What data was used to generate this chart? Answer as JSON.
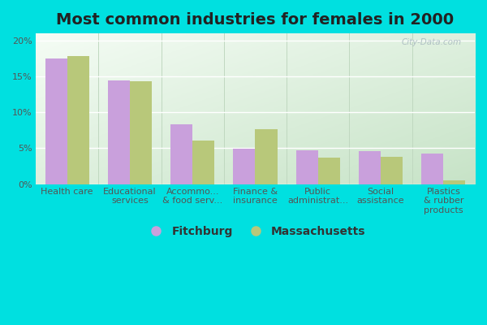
{
  "title": "Most common industries for females in 2000",
  "categories": [
    "Health care",
    "Educational\nservices",
    "Accommo...\n& food serv...",
    "Finance &\ninsurance",
    "Public\nadministrat...",
    "Social\nassistance",
    "Plastics\n& rubber\nproducts"
  ],
  "fitchburg_values": [
    17.5,
    14.4,
    8.3,
    4.9,
    4.7,
    4.6,
    4.2
  ],
  "massachusetts_values": [
    17.8,
    14.3,
    6.1,
    7.7,
    3.7,
    3.8,
    0.5
  ],
  "fitchburg_color": "#c9a0dc",
  "massachusetts_color": "#b8c87a",
  "background_outer": "#00e0e0",
  "ylim": [
    0,
    21
  ],
  "yticks": [
    0,
    5,
    10,
    15,
    20
  ],
  "ytick_labels": [
    "0%",
    "5%",
    "10%",
    "15%",
    "20%"
  ],
  "bar_width": 0.35,
  "legend_labels": [
    "Fitchburg",
    "Massachusetts"
  ],
  "watermark": "City-Data.com",
  "title_fontsize": 14,
  "tick_fontsize": 8,
  "legend_fontsize": 10
}
